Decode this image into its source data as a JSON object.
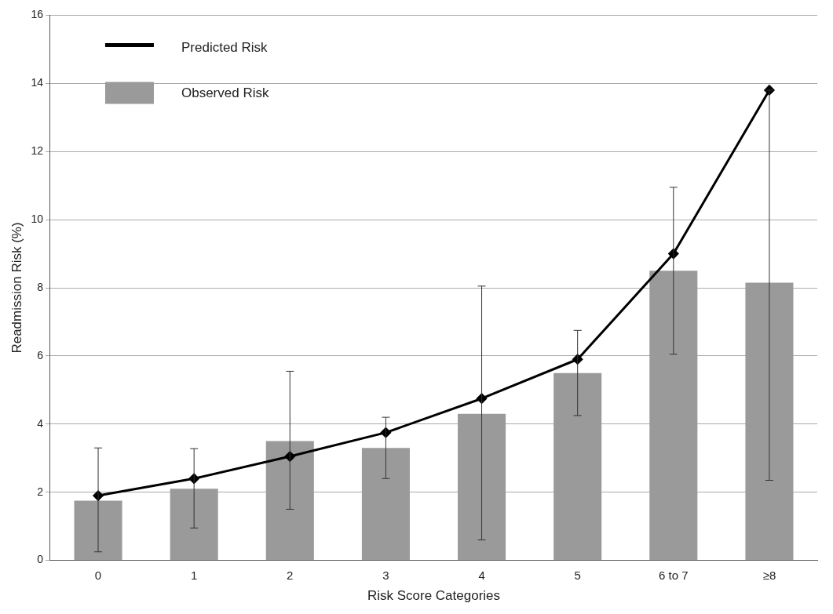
{
  "chart_data": {
    "type": "bar",
    "xlabel": "Risk Score Categories",
    "ylabel": "Readmission Risk (%)",
    "categories": [
      "0",
      "1",
      "2",
      "3",
      "4",
      "5",
      "6 to 7",
      "≥8"
    ],
    "series": [
      {
        "name": "Predicted Risk",
        "type": "line",
        "color": "#000000",
        "marker": "diamond",
        "values": [
          1.9,
          2.4,
          3.05,
          3.75,
          4.75,
          5.9,
          9.0,
          13.8
        ]
      },
      {
        "name": "Observed Risk",
        "color": "#9a9a9a",
        "values": [
          1.75,
          2.1,
          3.5,
          3.3,
          4.3,
          5.5,
          8.5,
          8.15
        ],
        "errors": [
          [
            0.25,
            3.3
          ],
          [
            0.95,
            3.28
          ],
          [
            1.5,
            5.55
          ],
          [
            2.4,
            4.2
          ],
          [
            0.6,
            8.05
          ],
          [
            4.25,
            6.75
          ],
          [
            6.05,
            10.95
          ],
          [
            2.35,
            13.8
          ]
        ]
      }
    ],
    "ylim": [
      0,
      16
    ],
    "yticks": [
      0,
      2,
      4,
      6,
      8,
      10,
      12,
      14,
      16
    ],
    "grid": "y",
    "legend": "top left"
  }
}
